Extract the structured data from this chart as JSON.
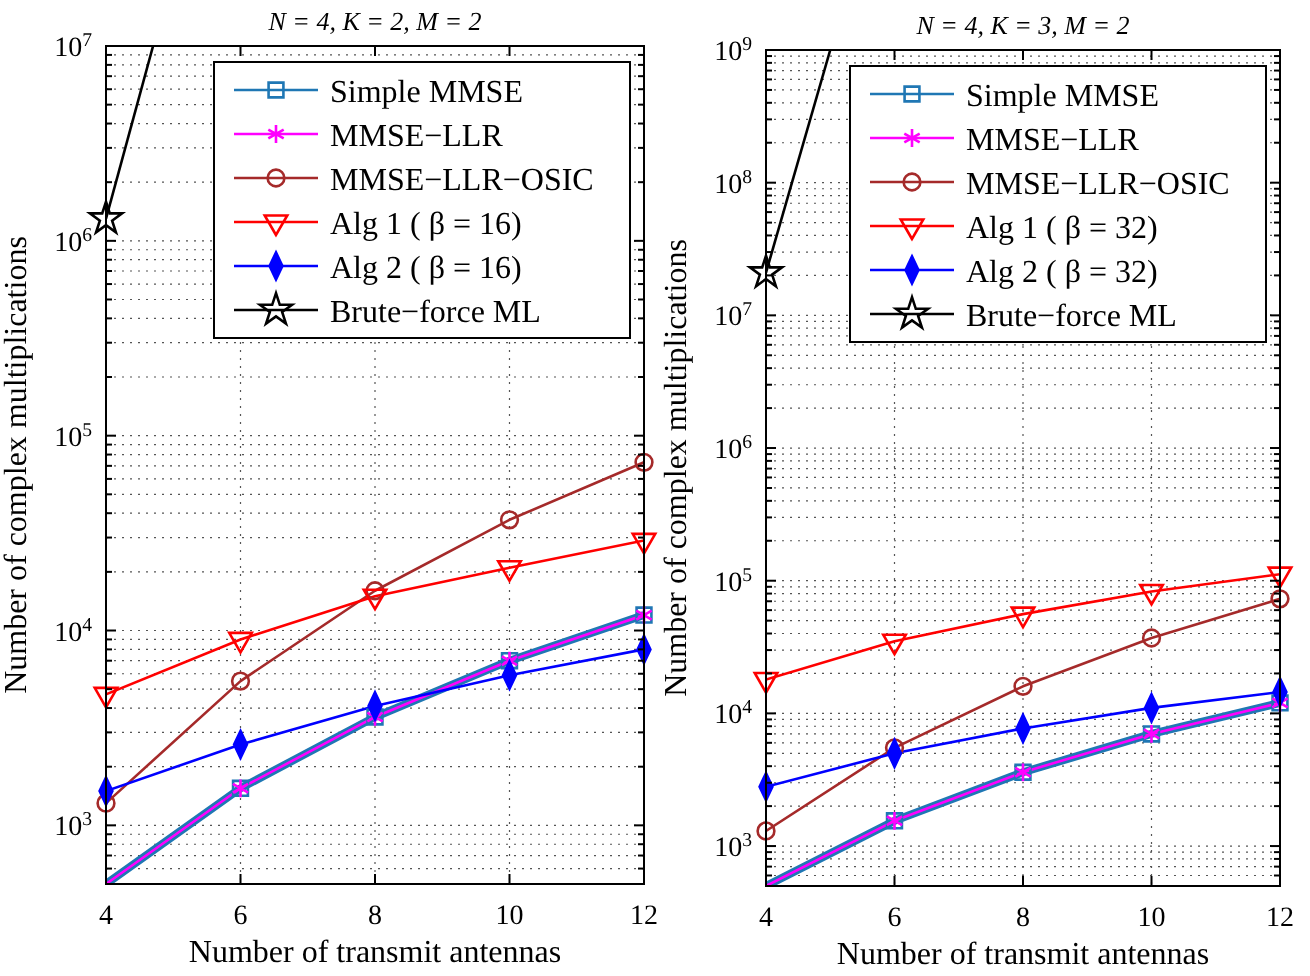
{
  "chart_data": [
    {
      "type": "line",
      "title": "N = 4,  K = 2,  M = 2",
      "xlabel": "Number of transmit antennas",
      "ylabel": "Number of complex multiplications",
      "log": "y",
      "grid": true,
      "legend": "top right",
      "xlim": [
        4,
        12
      ],
      "xticks": [
        4,
        6,
        8,
        10,
        12
      ],
      "ylim": [
        500,
        10000000
      ],
      "yticks": [
        {
          "value": 600,
          "label": null
        },
        {
          "value": 700,
          "label": null
        },
        {
          "value": 800,
          "label": null
        },
        {
          "value": 900,
          "label": null
        },
        {
          "value": 1000,
          "label": "10$^{3}$"
        },
        {
          "value": 2000,
          "label": null
        },
        {
          "value": 3000,
          "label": null
        },
        {
          "value": 4000,
          "label": null
        },
        {
          "value": 5000,
          "label": null
        },
        {
          "value": 6000,
          "label": null
        },
        {
          "value": 7000,
          "label": null
        },
        {
          "value": 8000,
          "label": null
        },
        {
          "value": 9000,
          "label": null
        },
        {
          "value": 10000,
          "label": "10$^{4}$"
        },
        {
          "value": 20000,
          "label": null
        },
        {
          "value": 30000,
          "label": null
        },
        {
          "value": 40000,
          "label": null
        },
        {
          "value": 50000,
          "label": null
        },
        {
          "value": 60000,
          "label": null
        },
        {
          "value": 70000,
          "label": null
        },
        {
          "value": 80000,
          "label": null
        },
        {
          "value": 90000,
          "label": null
        },
        {
          "value": 100000,
          "label": "10$^{5}$"
        },
        {
          "value": 200000,
          "label": null
        },
        {
          "value": 300000,
          "label": null
        },
        {
          "value": 400000,
          "label": null
        },
        {
          "value": 500000,
          "label": null
        },
        {
          "value": 600000,
          "label": null
        },
        {
          "value": 700000,
          "label": null
        },
        {
          "value": 800000,
          "label": null
        },
        {
          "value": 900000,
          "label": null
        },
        {
          "value": 1000000,
          "label": "10$^{6}$"
        },
        {
          "value": 2000000,
          "label": null
        },
        {
          "value": 3000000,
          "label": null
        },
        {
          "value": 4000000,
          "label": null
        },
        {
          "value": 5000000,
          "label": null
        },
        {
          "value": 6000000,
          "label": null
        },
        {
          "value": 7000000,
          "label": null
        },
        {
          "value": 8000000,
          "label": null
        },
        {
          "value": 9000000,
          "label": null
        },
        {
          "value": 10000000,
          "label": "10$^{7}$"
        }
      ],
      "x": [
        4,
        6,
        8,
        10,
        12
      ],
      "series": [
        {
          "name": "Simple MMSE",
          "color": "#1f77b4",
          "marker": "square",
          "values": [
            500,
            1550,
            3600,
            7000,
            12000
          ]
        },
        {
          "name": "MMSE−LLR",
          "color": "#ff00ff",
          "marker": "cross",
          "values": [
            500,
            1550,
            3600,
            7000,
            12000
          ]
        },
        {
          "name": "MMSE−LLR−OSIC",
          "color": "#a52a2a",
          "marker": "circle",
          "values": [
            1300,
            5500,
            16000,
            37000,
            73000
          ]
        },
        {
          "name": "Alg 1 ( β = 16)",
          "color": "#ff0000",
          "marker": "triangle",
          "values": [
            4700,
            9000,
            15000,
            21000,
            29000
          ]
        },
        {
          "name": "Alg 2 ( β = 16)",
          "color": "#0000ff",
          "marker": "diamond",
          "values": [
            1500,
            2600,
            4100,
            5900,
            8000
          ]
        },
        {
          "name": "Brute−force ML",
          "color": "#000000",
          "marker": "star",
          "x": [
            4,
            4.7
          ],
          "values": [
            1300000,
            10000000
          ]
        }
      ]
    },
    {
      "type": "line",
      "title": "N = 4,  K = 3,  M = 2",
      "xlabel": "Number of transmit antennas",
      "ylabel": "Number of complex multiplications",
      "log": "y",
      "grid": true,
      "legend": "top right",
      "xlim": [
        4,
        12
      ],
      "xticks": [
        4,
        6,
        8,
        10,
        12
      ],
      "ylim": [
        500,
        1000000000
      ],
      "yticks": [
        {
          "value": 600,
          "label": null
        },
        {
          "value": 700,
          "label": null
        },
        {
          "value": 800,
          "label": null
        },
        {
          "value": 900,
          "label": null
        },
        {
          "value": 1000,
          "label": "10$^{3}$"
        },
        {
          "value": 2000,
          "label": null
        },
        {
          "value": 3000,
          "label": null
        },
        {
          "value": 4000,
          "label": null
        },
        {
          "value": 5000,
          "label": null
        },
        {
          "value": 6000,
          "label": null
        },
        {
          "value": 7000,
          "label": null
        },
        {
          "value": 8000,
          "label": null
        },
        {
          "value": 9000,
          "label": null
        },
        {
          "value": 10000,
          "label": "10$^{4}$"
        },
        {
          "value": 20000,
          "label": null
        },
        {
          "value": 30000,
          "label": null
        },
        {
          "value": 40000,
          "label": null
        },
        {
          "value": 50000,
          "label": null
        },
        {
          "value": 60000,
          "label": null
        },
        {
          "value": 70000,
          "label": null
        },
        {
          "value": 80000,
          "label": null
        },
        {
          "value": 90000,
          "label": null
        },
        {
          "value": 100000,
          "label": "10$^{5}$"
        },
        {
          "value": 200000,
          "label": null
        },
        {
          "value": 300000,
          "label": null
        },
        {
          "value": 400000,
          "label": null
        },
        {
          "value": 500000,
          "label": null
        },
        {
          "value": 600000,
          "label": null
        },
        {
          "value": 700000,
          "label": null
        },
        {
          "value": 800000,
          "label": null
        },
        {
          "value": 900000,
          "label": null
        },
        {
          "value": 1000000,
          "label": "10$^{6}$"
        },
        {
          "value": 2000000,
          "label": null
        },
        {
          "value": 3000000,
          "label": null
        },
        {
          "value": 4000000,
          "label": null
        },
        {
          "value": 5000000,
          "label": null
        },
        {
          "value": 6000000,
          "label": null
        },
        {
          "value": 7000000,
          "label": null
        },
        {
          "value": 8000000,
          "label": null
        },
        {
          "value": 9000000,
          "label": null
        },
        {
          "value": 10000000,
          "label": "10$^{7}$"
        },
        {
          "value": 20000000,
          "label": null
        },
        {
          "value": 30000000,
          "label": null
        },
        {
          "value": 40000000,
          "label": null
        },
        {
          "value": 50000000,
          "label": null
        },
        {
          "value": 60000000,
          "label": null
        },
        {
          "value": 70000000,
          "label": null
        },
        {
          "value": 80000000,
          "label": null
        },
        {
          "value": 90000000,
          "label": null
        },
        {
          "value": 100000000,
          "label": "10$^{8}$"
        },
        {
          "value": 200000000,
          "label": null
        },
        {
          "value": 300000000,
          "label": null
        },
        {
          "value": 400000000,
          "label": null
        },
        {
          "value": 500000000,
          "label": null
        },
        {
          "value": 600000000,
          "label": null
        },
        {
          "value": 700000000,
          "label": null
        },
        {
          "value": 800000000,
          "label": null
        },
        {
          "value": 900000000,
          "label": null
        },
        {
          "value": 1000000000,
          "label": "10$^{9}$"
        }
      ],
      "x": [
        4,
        6,
        8,
        10,
        12
      ],
      "series": [
        {
          "name": "Simple MMSE",
          "color": "#1f77b4",
          "marker": "square",
          "values": [
            500,
            1550,
            3600,
            7000,
            12000
          ]
        },
        {
          "name": "MMSE−LLR",
          "color": "#ff00ff",
          "marker": "cross",
          "values": [
            500,
            1550,
            3600,
            7000,
            12000
          ]
        },
        {
          "name": "MMSE−LLR−OSIC",
          "color": "#a52a2a",
          "marker": "circle",
          "values": [
            1300,
            5500,
            16000,
            37000,
            73000
          ]
        },
        {
          "name": "Alg 1 ( β = 32)",
          "color": "#ff0000",
          "marker": "triangle",
          "values": [
            18000,
            35000,
            56000,
            83000,
            112000
          ]
        },
        {
          "name": "Alg 2 ( β = 32)",
          "color": "#0000ff",
          "marker": "diamond",
          "values": [
            2800,
            5000,
            7700,
            11000,
            14500
          ]
        },
        {
          "name": "Brute−force ML",
          "color": "#000000",
          "marker": "star",
          "x": [
            4,
            5
          ],
          "values": [
            21000000,
            1000000000
          ]
        }
      ]
    }
  ]
}
